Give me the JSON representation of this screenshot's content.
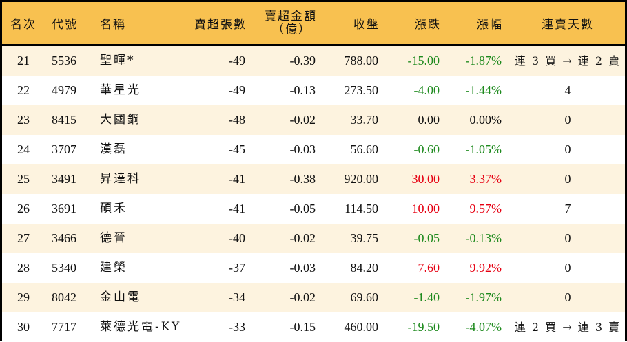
{
  "table": {
    "headers": {
      "rank": "名次",
      "code": "代號",
      "name": "名稱",
      "net_sell_volume": "賣超張數",
      "net_sell_amount_line1": "賣超金額",
      "net_sell_amount_line2": "（億）",
      "close": "收盤",
      "change": "漲跌",
      "change_pct": "漲幅",
      "consecutive_sell_days": "連賣天數"
    },
    "colors": {
      "header_bg": "#F8C150",
      "odd_row_bg": "#FDF3DF",
      "even_row_bg": "#FFFFFF",
      "up": "#E60012",
      "down": "#1E8A1E",
      "border": "#000000"
    },
    "rows": [
      {
        "rank": "21",
        "code": "5536",
        "name": "聖暉*",
        "volume": "-49",
        "amount": "-0.39",
        "close": "788.00",
        "change": "-15.00",
        "change_pct": "-1.87%",
        "trend": "down",
        "days": "連 3 買 → 連 2 賣"
      },
      {
        "rank": "22",
        "code": "4979",
        "name": "華星光",
        "volume": "-49",
        "amount": "-0.13",
        "close": "273.50",
        "change": "-4.00",
        "change_pct": "-1.44%",
        "trend": "down",
        "days": "4"
      },
      {
        "rank": "23",
        "code": "8415",
        "name": "大國鋼",
        "volume": "-48",
        "amount": "-0.02",
        "close": "33.70",
        "change": "0.00",
        "change_pct": "0.00%",
        "trend": "flat",
        "days": "0"
      },
      {
        "rank": "24",
        "code": "3707",
        "name": "漢磊",
        "volume": "-45",
        "amount": "-0.03",
        "close": "56.60",
        "change": "-0.60",
        "change_pct": "-1.05%",
        "trend": "down",
        "days": "0"
      },
      {
        "rank": "25",
        "code": "3491",
        "name": "昇達科",
        "volume": "-41",
        "amount": "-0.38",
        "close": "920.00",
        "change": "30.00",
        "change_pct": "3.37%",
        "trend": "up",
        "days": "0"
      },
      {
        "rank": "26",
        "code": "3691",
        "name": "碩禾",
        "volume": "-41",
        "amount": "-0.05",
        "close": "114.50",
        "change": "10.00",
        "change_pct": "9.57%",
        "trend": "up",
        "days": "7"
      },
      {
        "rank": "27",
        "code": "3466",
        "name": "德晉",
        "volume": "-40",
        "amount": "-0.02",
        "close": "39.75",
        "change": "-0.05",
        "change_pct": "-0.13%",
        "trend": "down",
        "days": "0"
      },
      {
        "rank": "28",
        "code": "5340",
        "name": "建榮",
        "volume": "-37",
        "amount": "-0.03",
        "close": "84.20",
        "change": "7.60",
        "change_pct": "9.92%",
        "trend": "up",
        "days": "0"
      },
      {
        "rank": "29",
        "code": "8042",
        "name": "金山電",
        "volume": "-34",
        "amount": "-0.02",
        "close": "69.60",
        "change": "-1.40",
        "change_pct": "-1.97%",
        "trend": "down",
        "days": "0"
      },
      {
        "rank": "30",
        "code": "7717",
        "name": "萊德光電-KY",
        "volume": "-33",
        "amount": "-0.15",
        "close": "460.00",
        "change": "-19.50",
        "change_pct": "-4.07%",
        "trend": "down",
        "days": "連 2 買 → 連 3 賣"
      }
    ]
  }
}
